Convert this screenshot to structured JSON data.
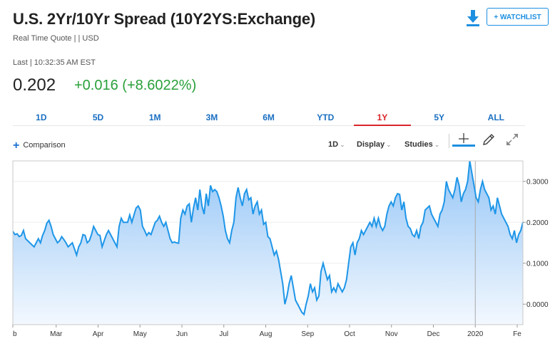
{
  "header": {
    "title": "U.S. 2Yr/10Yr Spread (10Y2YS:Exchange)",
    "subtitle": "Real Time Quote | | USD",
    "last_line": "Last | 10:32:35 AM EST",
    "price": "0.202",
    "change": "+0.016 (+8.6022%)",
    "change_color": "#29a03a",
    "watchlist_label": "+ WATCHLIST",
    "download_icon": "download-icon"
  },
  "range_tabs": [
    "1D",
    "5D",
    "1M",
    "3M",
    "6M",
    "YTD",
    "1Y",
    "5Y",
    "ALL"
  ],
  "active_range": "1Y",
  "toolbar": {
    "comparison_label": "Comparison",
    "interval_label": "1D",
    "display_label": "Display",
    "studies_label": "Studies",
    "icons": [
      "crosshair-icon",
      "pencil-icon",
      "expand-icon"
    ]
  },
  "chart_data": {
    "type": "area",
    "series": [
      {
        "values": [
          0.178,
          0.17,
          0.172,
          0.165,
          0.168,
          0.18,
          0.16,
          0.155,
          0.15,
          0.145,
          0.14,
          0.15,
          0.16,
          0.15,
          0.168,
          0.18,
          0.198,
          0.205,
          0.19,
          0.17,
          0.16,
          0.15,
          0.155,
          0.165,
          0.158,
          0.15,
          0.14,
          0.145,
          0.15,
          0.135,
          0.12,
          0.14,
          0.15,
          0.17,
          0.168,
          0.15,
          0.155,
          0.17,
          0.19,
          0.18,
          0.17,
          0.168,
          0.14,
          0.155,
          0.17,
          0.18,
          0.17,
          0.16,
          0.15,
          0.14,
          0.19,
          0.21,
          0.2,
          0.2,
          0.2,
          0.218,
          0.2,
          0.218,
          0.235,
          0.24,
          0.23,
          0.19,
          0.18,
          0.168,
          0.175,
          0.17,
          0.185,
          0.2,
          0.205,
          0.215,
          0.2,
          0.19,
          0.2,
          0.18,
          0.16,
          0.15,
          0.152,
          0.15,
          0.149,
          0.21,
          0.23,
          0.22,
          0.24,
          0.245,
          0.2,
          0.235,
          0.26,
          0.23,
          0.28,
          0.24,
          0.22,
          0.27,
          0.24,
          0.29,
          0.275,
          0.28,
          0.275,
          0.26,
          0.24,
          0.215,
          0.18,
          0.16,
          0.15,
          0.18,
          0.2,
          0.26,
          0.285,
          0.26,
          0.24,
          0.27,
          0.28,
          0.255,
          0.26,
          0.22,
          0.24,
          0.25,
          0.22,
          0.23,
          0.195,
          0.2,
          0.165,
          0.16,
          0.14,
          0.12,
          0.13,
          0.11,
          0.08,
          0.05,
          0.0,
          0.02,
          0.05,
          0.07,
          0.04,
          0.01,
          0.0,
          -0.01,
          -0.02,
          -0.025,
          0.0,
          0.02,
          0.05,
          0.03,
          0.04,
          0.01,
          0.02,
          0.08,
          0.1,
          0.08,
          0.06,
          0.07,
          0.03,
          0.04,
          0.03,
          0.05,
          0.04,
          0.03,
          0.04,
          0.06,
          0.1,
          0.14,
          0.15,
          0.12,
          0.15,
          0.16,
          0.18,
          0.17,
          0.18,
          0.19,
          0.2,
          0.19,
          0.21,
          0.19,
          0.21,
          0.19,
          0.18,
          0.19,
          0.22,
          0.24,
          0.25,
          0.24,
          0.26,
          0.27,
          0.268,
          0.23,
          0.25,
          0.21,
          0.19,
          0.185,
          0.17,
          0.165,
          0.18,
          0.16,
          0.19,
          0.2,
          0.23,
          0.235,
          0.24,
          0.22,
          0.21,
          0.2,
          0.19,
          0.22,
          0.23,
          0.25,
          0.3,
          0.28,
          0.27,
          0.26,
          0.28,
          0.31,
          0.29,
          0.25,
          0.27,
          0.28,
          0.3,
          0.35,
          0.32,
          0.29,
          0.26,
          0.25,
          0.28,
          0.3,
          0.28,
          0.27,
          0.26,
          0.23,
          0.24,
          0.22,
          0.26,
          0.24,
          0.22,
          0.21,
          0.2,
          0.19,
          0.17,
          0.16,
          0.18,
          0.15,
          0.17,
          0.18,
          0.2
        ]
      }
    ],
    "x_labels": [
      "b",
      "Mar",
      "Apr",
      "May",
      "Jun",
      "Jul",
      "Aug",
      "Sep",
      "Oct",
      "Nov",
      "Dec",
      "2020",
      "Fe"
    ],
    "y_ticks": [
      0.3,
      0.2,
      0.1,
      0.0
    ],
    "y_tick_labels": [
      "0.3000",
      "0.2000",
      "0.1000",
      "0.0000"
    ],
    "ylim": [
      -0.05,
      0.35
    ],
    "marker_label": "2020",
    "line_color": "#1e96e8",
    "fill_color_top": "#8ec2f6",
    "fill_color_bottom": "#f1f7fe",
    "grid": true,
    "legend": "none"
  }
}
